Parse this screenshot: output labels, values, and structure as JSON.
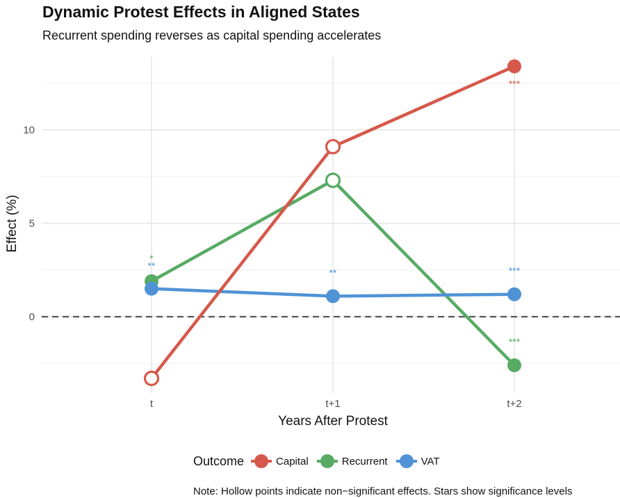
{
  "chart_data": {
    "type": "line",
    "title": "Dynamic Protest Effects in Aligned States",
    "subtitle": "Recurrent spending reverses as capital spending accelerates",
    "xlabel": "Years After Protest",
    "ylabel": "Effect (%)",
    "categories": [
      "t",
      "t+1",
      "t+2"
    ],
    "y_ticks": [
      "0",
      "5",
      "10"
    ],
    "y_tick_values": [
      0,
      5,
      10
    ],
    "ylim": [
      -4.3,
      13.9
    ],
    "reference_line": 0,
    "grid": true,
    "legend": {
      "title": "Outcome",
      "position": "bottom"
    },
    "note": "Note: Hollow points indicate non−significant effects. Stars show significance levels",
    "series": [
      {
        "name": "Capital",
        "color": "#d6584a",
        "values": [
          -3.3,
          9.1,
          13.4
        ],
        "significant": [
          false,
          false,
          true
        ],
        "stars": [
          "",
          "",
          "***"
        ]
      },
      {
        "name": "Recurrent",
        "color": "#57ab64",
        "values": [
          1.9,
          7.3,
          -2.6
        ],
        "significant": [
          true,
          false,
          true
        ],
        "stars": [
          "*",
          "",
          "***"
        ]
      },
      {
        "name": "VAT",
        "color": "#4f93d6",
        "values": [
          1.5,
          1.1,
          1.2
        ],
        "significant": [
          true,
          true,
          true
        ],
        "stars": [
          "**",
          "**",
          "***"
        ]
      }
    ]
  }
}
